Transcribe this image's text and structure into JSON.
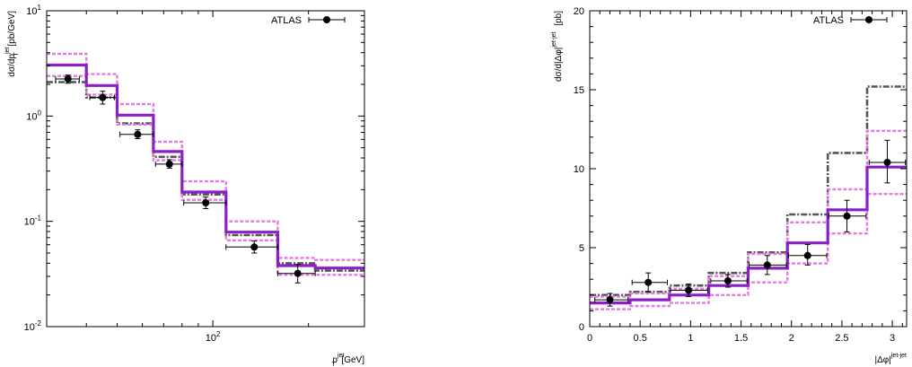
{
  "colors": {
    "data": "#000000",
    "central": "#8b1ec9",
    "band": "#e07de0",
    "alt": "#555555"
  },
  "chart_data": [
    {
      "type": "step",
      "xlabel_main": "p",
      "xlabel_sup": "jet",
      "xlabel_sub": "T",
      "xlabel_unit": "[GeV]",
      "ylabel_main": "dσ/dp",
      "ylabel_sup": "jet",
      "ylabel_sub": "T",
      "ylabel_unit": "[pb/GeV]",
      "xscale": "log",
      "yscale": "log",
      "xlim": [
        30,
        300
      ],
      "ylim": [
        0.01,
        10
      ],
      "x_ticks": [
        {
          "value": 100,
          "base": "10",
          "exp": "2"
        }
      ],
      "y_ticks": [
        {
          "value": 0.01,
          "base": "10",
          "exp": "-2"
        },
        {
          "value": 0.1,
          "base": "10",
          "exp": "-1"
        },
        {
          "value": 1,
          "base": "10",
          "exp": "0"
        },
        {
          "value": 10,
          "base": "10",
          "exp": "1"
        }
      ],
      "bin_edges": [
        30,
        40,
        50,
        65,
        80,
        110,
        160,
        210,
        300
      ],
      "series": [
        {
          "key": "alt",
          "values": [
            2.1,
            1.5,
            0.85,
            0.41,
            0.18,
            0.074,
            0.04,
            0.034
          ]
        },
        {
          "key": "central",
          "values": [
            3.05,
            1.95,
            1.02,
            0.46,
            0.19,
            0.079,
            0.038,
            0.036
          ]
        },
        {
          "key": "band_hi",
          "values": [
            3.9,
            2.5,
            1.3,
            0.57,
            0.24,
            0.1,
            0.045,
            0.043
          ]
        },
        {
          "key": "band_lo",
          "values": [
            2.4,
            1.6,
            0.83,
            0.38,
            0.16,
            0.066,
            0.031,
            0.031
          ]
        }
      ],
      "data_points": {
        "legend": "ATLAS",
        "points": [
          {
            "x": 35,
            "xlo": 32,
            "xhi": 38,
            "y": 2.25,
            "ylo": 2.05,
            "yhi": 2.45
          },
          {
            "x": 45,
            "xlo": 41,
            "xhi": 49,
            "y": 1.5,
            "ylo": 1.3,
            "yhi": 1.72
          },
          {
            "x": 58,
            "xlo": 51,
            "xhi": 65,
            "y": 0.67,
            "ylo": 0.61,
            "yhi": 0.74
          },
          {
            "x": 73,
            "xlo": 66,
            "xhi": 80,
            "y": 0.35,
            "ylo": 0.32,
            "yhi": 0.385
          },
          {
            "x": 95,
            "xlo": 81,
            "xhi": 110,
            "y": 0.15,
            "ylo": 0.132,
            "yhi": 0.17
          },
          {
            "x": 135,
            "xlo": 110,
            "xhi": 160,
            "y": 0.057,
            "ylo": 0.05,
            "yhi": 0.065
          },
          {
            "x": 185,
            "xlo": 160,
            "xhi": 210,
            "y": 0.032,
            "ylo": 0.026,
            "yhi": 0.039
          }
        ]
      }
    },
    {
      "type": "step",
      "xlabel_main": "|Δφ|",
      "xlabel_sup": "jet-jet",
      "xlabel_sub": "",
      "xlabel_unit": "",
      "ylabel_main": "dσ/d|Δφ|",
      "ylabel_sup": "jet-jet",
      "ylabel_sub": "",
      "ylabel_unit": "[pb]",
      "xscale": "linear",
      "yscale": "linear",
      "xlim": [
        0,
        3.14159
      ],
      "ylim": [
        0,
        20
      ],
      "x_ticks": [
        {
          "value": 0,
          "label": "0"
        },
        {
          "value": 0.5,
          "label": "0.5"
        },
        {
          "value": 1,
          "label": "1"
        },
        {
          "value": 1.5,
          "label": "1.5"
        },
        {
          "value": 2,
          "label": "2"
        },
        {
          "value": 2.5,
          "label": "2.5"
        },
        {
          "value": 3,
          "label": "3"
        }
      ],
      "y_ticks": [
        {
          "value": 0,
          "label": "0"
        },
        {
          "value": 5,
          "label": "5"
        },
        {
          "value": 10,
          "label": "10"
        },
        {
          "value": 15,
          "label": "15"
        },
        {
          "value": 20,
          "label": "20"
        }
      ],
      "bin_edges": [
        0,
        0.4,
        0.79,
        1.18,
        1.57,
        1.96,
        2.36,
        2.75,
        3.14159
      ],
      "series": [
        {
          "key": "alt",
          "values": [
            2.0,
            2.2,
            2.6,
            3.4,
            4.7,
            7.1,
            11.0,
            15.2
          ]
        },
        {
          "key": "central",
          "values": [
            1.5,
            1.7,
            2.0,
            2.6,
            3.7,
            5.3,
            7.4,
            10.1
          ]
        },
        {
          "key": "band_hi",
          "values": [
            1.9,
            2.1,
            2.4,
            3.2,
            4.6,
            6.6,
            8.7,
            12.4
          ]
        },
        {
          "key": "band_lo",
          "values": [
            1.1,
            1.3,
            1.5,
            2.0,
            2.8,
            4.0,
            5.9,
            8.4
          ]
        }
      ],
      "data_points": {
        "legend": "ATLAS",
        "points": [
          {
            "x": 0.2,
            "xlo": 0.05,
            "xhi": 0.38,
            "y": 1.7,
            "ylo": 1.3,
            "yhi": 2.1
          },
          {
            "x": 0.58,
            "xlo": 0.42,
            "xhi": 0.77,
            "y": 2.8,
            "ylo": 2.2,
            "yhi": 3.4
          },
          {
            "x": 0.98,
            "xlo": 0.8,
            "xhi": 1.17,
            "y": 2.3,
            "ylo": 1.9,
            "yhi": 2.7
          },
          {
            "x": 1.37,
            "xlo": 1.2,
            "xhi": 1.56,
            "y": 2.9,
            "ylo": 2.5,
            "yhi": 3.3
          },
          {
            "x": 1.76,
            "xlo": 1.58,
            "xhi": 1.95,
            "y": 3.9,
            "ylo": 3.3,
            "yhi": 4.5
          },
          {
            "x": 2.16,
            "xlo": 1.97,
            "xhi": 2.35,
            "y": 4.5,
            "ylo": 3.9,
            "yhi": 5.2
          },
          {
            "x": 2.55,
            "xlo": 2.37,
            "xhi": 2.74,
            "y": 7.0,
            "ylo": 6.0,
            "yhi": 8.0
          },
          {
            "x": 2.95,
            "xlo": 2.77,
            "xhi": 3.13,
            "y": 10.4,
            "ylo": 9.1,
            "yhi": 11.8
          }
        ]
      }
    }
  ]
}
